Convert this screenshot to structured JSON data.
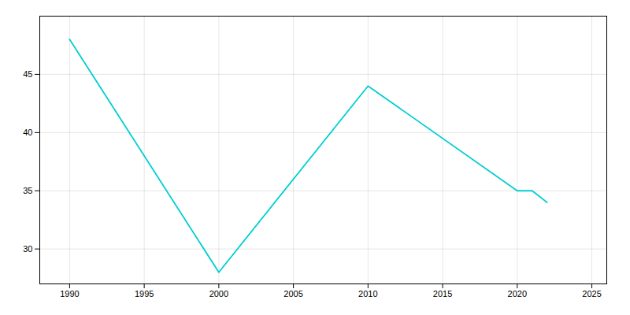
{
  "chart_data": {
    "type": "line",
    "x": [
      1990,
      2000,
      2010,
      2020,
      2021,
      2022
    ],
    "values": [
      48,
      28,
      44,
      35,
      35,
      34
    ],
    "color": "#00CED1",
    "xlim": [
      1988,
      2026
    ],
    "ylim": [
      27,
      50
    ],
    "xticks": [
      1990,
      1995,
      2000,
      2005,
      2010,
      2015,
      2020,
      2025
    ],
    "yticks": [
      30,
      35,
      40,
      45
    ],
    "grid": true
  }
}
